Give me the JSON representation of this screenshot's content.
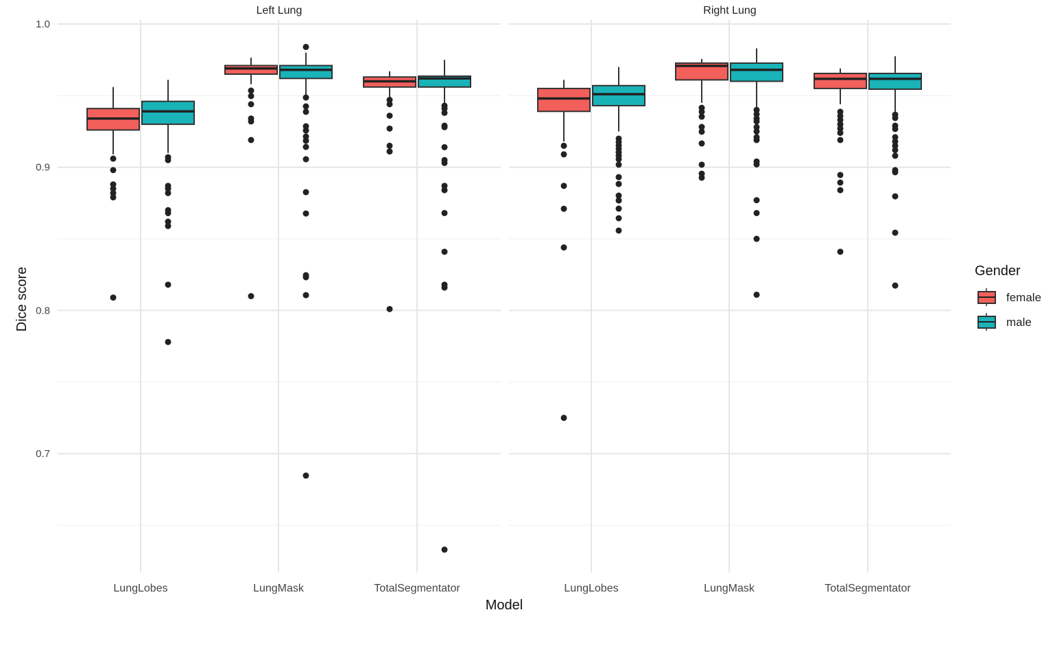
{
  "chart_data": {
    "type": "boxplot",
    "xlabel": "Model",
    "ylabel": "Dice score",
    "ylim": [
      0.617,
      1.003
    ],
    "yticks": [
      "0.7",
      "0.8",
      "0.9",
      "1.0"
    ],
    "ytick_values": [
      0.7,
      0.8,
      0.9,
      1.0
    ],
    "grid": true,
    "categories": [
      "LungLobes",
      "LungMask",
      "TotalSegmentator"
    ],
    "legend": {
      "title": "Gender",
      "position": "right",
      "entries": [
        "female",
        "male"
      ]
    },
    "colors": {
      "female": "#F35F5B",
      "male": "#19B3B8"
    },
    "panels": [
      {
        "title": "Left Lung",
        "groups": [
          {
            "female": {
              "whisker_low": 0.909,
              "q1": 0.926,
              "median": 0.934,
              "q3": 0.941,
              "whisker_high": 0.956,
              "outliers": [
                0.906,
                0.898,
                0.888,
                0.885,
                0.882,
                0.879,
                0.809
              ]
            },
            "male": {
              "whisker_low": 0.91,
              "q1": 0.93,
              "median": 0.939,
              "q3": 0.946,
              "whisker_high": 0.961,
              "outliers": [
                0.907,
                0.905,
                0.887,
                0.885,
                0.882,
                0.87,
                0.868,
                0.862,
                0.859,
                0.818,
                0.778
              ]
            }
          },
          {
            "female": {
              "whisker_low": 0.958,
              "q1": 0.965,
              "median": 0.969,
              "q3": 0.971,
              "whisker_high": 0.9765,
              "outliers": [
                0.9535,
                0.9497,
                0.944,
                0.934,
                0.932,
                0.919,
                0.81
              ]
            },
            "male": {
              "whisker_low": 0.95,
              "q1": 0.962,
              "median": 0.968,
              "q3": 0.971,
              "whisker_high": 0.98,
              "outliers": [
                0.984,
                0.9487,
                0.9425,
                0.9387,
                0.9286,
                0.9257,
                0.9214,
                0.9185,
                0.9142,
                0.9056,
                0.8826,
                0.8677,
                0.8246,
                0.8232,
                0.8107,
                0.6847
              ]
            }
          },
          {
            "female": {
              "whisker_low": 0.947,
              "q1": 0.956,
              "median": 0.96,
              "q3": 0.963,
              "whisker_high": 0.967,
              "outliers": [
                0.947,
                0.944,
                0.936,
                0.927,
                0.915,
                0.911,
                0.801
              ]
            },
            "male": {
              "whisker_low": 0.945,
              "q1": 0.956,
              "median": 0.962,
              "q3": 0.9636,
              "whisker_high": 0.975,
              "outliers": [
                0.943,
                0.941,
                0.938,
                0.929,
                0.928,
                0.914,
                0.905,
                0.903,
                0.887,
                0.884,
                0.868,
                0.841,
                0.818,
                0.816,
                0.633
              ]
            }
          }
        ]
      },
      {
        "title": "Right Lung",
        "groups": [
          {
            "female": {
              "whisker_low": 0.918,
              "q1": 0.939,
              "median": 0.948,
              "q3": 0.955,
              "whisker_high": 0.961,
              "outliers": [
                0.915,
                0.909,
                0.887,
                0.871,
                0.844,
                0.725
              ]
            },
            "male": {
              "whisker_low": 0.925,
              "q1": 0.943,
              "median": 0.951,
              "q3": 0.957,
              "whisker_high": 0.97,
              "outliers": [
                0.92,
                0.9176,
                0.9152,
                0.9128,
                0.9104,
                0.908,
                0.9056,
                0.9018,
                0.8931,
                0.8883,
                0.8802,
                0.8768,
                0.8711,
                0.8644,
                0.8558
              ]
            }
          },
          {
            "female": {
              "whisker_low": 0.945,
              "q1": 0.961,
              "median": 0.9708,
              "q3": 0.9727,
              "whisker_high": 0.9756,
              "outliers": [
                0.9415,
                0.9387,
                0.9353,
                0.9281,
                0.9248,
                0.9166,
                0.9018,
                0.8955,
                0.8927
              ]
            },
            "male": {
              "whisker_low": 0.9415,
              "q1": 0.96,
              "median": 0.968,
              "q3": 0.9727,
              "whisker_high": 0.983,
              "outliers": [
                0.94,
                0.937,
                0.934,
                0.932,
                0.928,
                0.925,
                0.921,
                0.919,
                0.904,
                0.902,
                0.877,
                0.868,
                0.85,
                0.811
              ]
            }
          },
          {
            "female": {
              "whisker_low": 0.944,
              "q1": 0.955,
              "median": 0.9617,
              "q3": 0.9655,
              "whisker_high": 0.969,
              "outliers": [
                0.9387,
                0.9358,
                0.933,
                0.93,
                0.927,
                0.924,
                0.919,
                0.8946,
                0.8893,
                0.884,
                0.841
              ]
            },
            "male": {
              "whisker_low": 0.9387,
              "q1": 0.9545,
              "median": 0.9617,
              "q3": 0.9655,
              "whisker_high": 0.9775,
              "outliers": [
                0.9367,
                0.9344,
                0.929,
                0.9267,
                0.921,
                0.918,
                0.915,
                0.912,
                0.908,
                0.898,
                0.8965,
                0.8797,
                0.8543,
                0.8174
              ]
            }
          }
        ]
      }
    ]
  }
}
